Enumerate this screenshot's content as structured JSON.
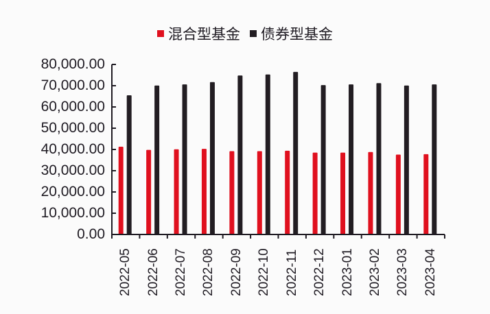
{
  "chart_data": {
    "type": "bar",
    "title": "",
    "xlabel": "",
    "ylabel": "",
    "ylim": [
      0,
      80000
    ],
    "yticks": [
      "0.00",
      "10,000.00",
      "20,000.00",
      "30,000.00",
      "40,000.00",
      "50,000.00",
      "60,000.00",
      "70,000.00",
      "80,000.00"
    ],
    "grid": false,
    "legend_position": "top",
    "categories": [
      "2022-05",
      "2022-06",
      "2022-07",
      "2022-08",
      "2022-09",
      "2022-10",
      "2022-11",
      "2022-12",
      "2023-01",
      "2023-02",
      "2023-03",
      "2023-04"
    ],
    "series": [
      {
        "name": "混合型基金",
        "color": "#e0101e",
        "values": [
          41300,
          39800,
          40100,
          40300,
          39200,
          39200,
          39400,
          38500,
          38500,
          38800,
          37600,
          37800
        ]
      },
      {
        "name": "债券型基金",
        "color": "#221d22",
        "values": [
          65500,
          70100,
          70600,
          71700,
          74800,
          75300,
          76500,
          70300,
          70600,
          71200,
          70100,
          70600
        ]
      }
    ]
  }
}
